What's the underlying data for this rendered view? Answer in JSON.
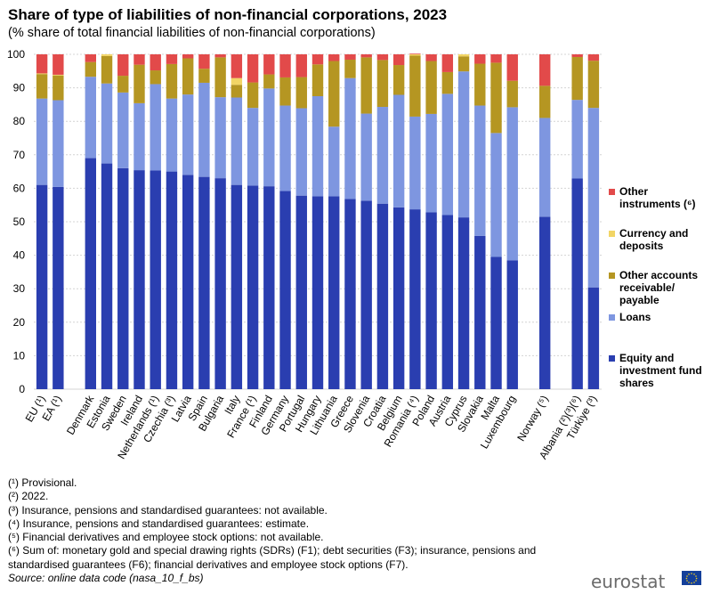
{
  "header": {
    "title": "Share of type of liabilities of non-financial corporations, 2023",
    "subtitle": "(% share of total financial liabilities of non-financial corporations)"
  },
  "legend": {
    "items": [
      {
        "label": "Other instruments (⁶)",
        "color": "#e24a4a"
      },
      {
        "label": "Currency and deposits",
        "color": "#f2d565"
      },
      {
        "label": "Other accounts receivable/ payable",
        "color": "#b59622"
      },
      {
        "label": "Loans",
        "color": "#7e96e0"
      },
      {
        "label": "Equity and investment fund shares",
        "color": "#2a3eb0"
      }
    ]
  },
  "chart_data": {
    "type": "bar",
    "stacked": true,
    "title": "Share of type of liabilities of non-financial corporations, 2023",
    "ylabel": "% share of total financial liabilities",
    "ylim": [
      0,
      100
    ],
    "yticks": [
      0,
      10,
      20,
      30,
      40,
      50,
      60,
      70,
      80,
      90,
      100
    ],
    "grid": true,
    "categories": [
      "EU (¹)",
      "EA (¹)",
      "",
      "Denmark",
      "Estonia",
      "Sweden",
      "Ireland",
      "Netherlands (¹)",
      "Czechia (³)",
      "Latvia",
      "Spain",
      "Bulgaria",
      "Italy",
      "France (¹)",
      "Finland",
      "Germany",
      "Portugal",
      "Hungary",
      "Lithuania",
      "Greece",
      "Slovenia",
      "Croatia",
      "Belgium",
      "Romania (⁴)",
      "Poland",
      "Austria",
      "Cyprus",
      "Slovakia",
      "Malta",
      "Luxembourg",
      "",
      "Norway (⁵)",
      "",
      "Albania (²)(³)(⁶)",
      "Türkiye (³)"
    ],
    "series": [
      {
        "name": "Equity and investment fund shares",
        "color": "#2a3eb0",
        "values": [
          61,
          60.4,
          null,
          69,
          67.4,
          66,
          65.4,
          65.3,
          65,
          64,
          63.4,
          63,
          61,
          60.8,
          60.6,
          59.2,
          57.8,
          57.6,
          57.6,
          56.8,
          56.3,
          55.4,
          54.3,
          53.7,
          52.8,
          52,
          51.3,
          45.8,
          39.5,
          38.5,
          null,
          51.5,
          null,
          62.9,
          30.4
        ]
      },
      {
        "name": "Loans",
        "color": "#7e96e0",
        "values": [
          25.8,
          25.9,
          null,
          24.3,
          23.9,
          22.6,
          20,
          25.8,
          21.8,
          24,
          28.1,
          24.2,
          26.1,
          23.2,
          29.2,
          25.5,
          26.1,
          29.9,
          20.8,
          36.1,
          26,
          28.9,
          33.6,
          27.7,
          29.4,
          36.2,
          43.6,
          38.9,
          37,
          45.7,
          null,
          29.5,
          null,
          23.5,
          53.6
        ]
      },
      {
        "name": "Other accounts receivable/ payable",
        "color": "#b59622",
        "values": [
          7.3,
          7.4,
          null,
          4.4,
          8.2,
          5,
          11.5,
          4.1,
          10.3,
          10.8,
          4.2,
          11.9,
          3.8,
          7.6,
          4.2,
          8.4,
          9.3,
          9.5,
          19.6,
          5.5,
          16.8,
          14,
          8.9,
          18.2,
          15.8,
          6.5,
          4.5,
          12.5,
          21,
          7.9,
          null,
          9.6,
          null,
          12.8,
          14.1
        ]
      },
      {
        "name": "Currency and deposits",
        "color": "#f2d565",
        "values": [
          0.2,
          0.2,
          null,
          0,
          0.5,
          0,
          0,
          0,
          0,
          0,
          0,
          0,
          2,
          0,
          0,
          0,
          0,
          0,
          0,
          0,
          0,
          0,
          0,
          0.4,
          0,
          0,
          0.6,
          0,
          0,
          0,
          null,
          0,
          null,
          0,
          0
        ]
      },
      {
        "name": "Other instruments (⁶)",
        "color": "#e24a4a",
        "values": [
          5.7,
          6.1,
          null,
          2.3,
          0,
          6.4,
          3.1,
          4.8,
          2.9,
          1.2,
          4.3,
          0.9,
          7.1,
          8.4,
          6,
          6.9,
          6.8,
          3,
          2,
          1.6,
          0.9,
          1.7,
          3.2,
          0.2,
          2,
          5.3,
          0,
          2.8,
          2.5,
          7.9,
          null,
          9.4,
          null,
          0.8,
          1.9
        ]
      }
    ]
  },
  "footnotes": [
    "(¹) Provisional.",
    "(²) 2022.",
    "(³) Insurance,  pensions and standardised guarantees: not available.",
    "(⁴) Insurance,  pensions and standardised guarantees: estimate.",
    "(⁵) Financial derivatives and employee stock options: not available.",
    "(⁶) Sum of: monetary gold and special drawing rights (SDRs) (F1); debt securities (F3); insurance, pensions and",
    "standardised guarantees (F6); financial derivatives and employee stock options (F7)."
  ],
  "source": "Source: online data code (nasa_10_f_bs)",
  "logo": "eurostat"
}
